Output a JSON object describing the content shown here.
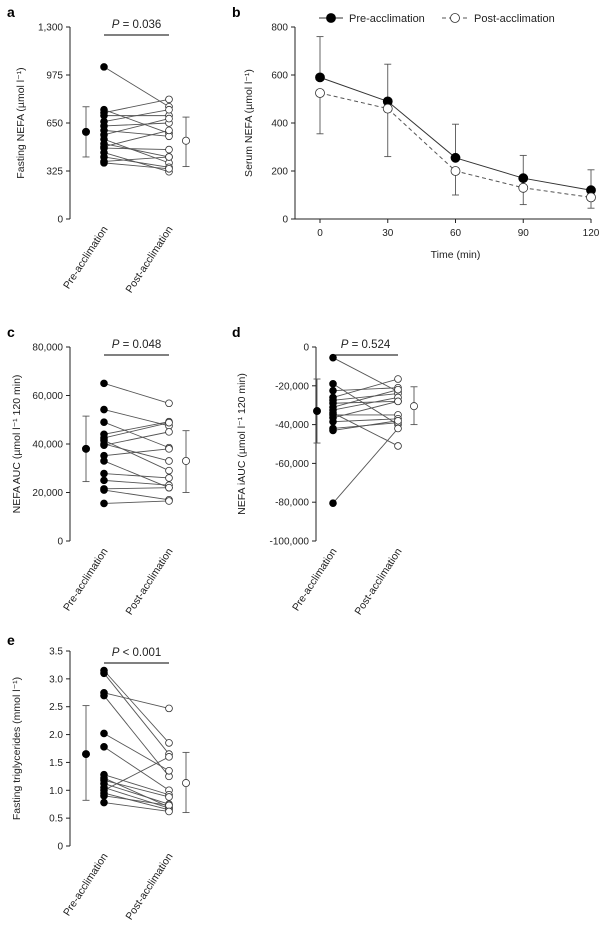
{
  "chart_data": [
    {
      "id": "a",
      "panel": "a",
      "type": "scatter",
      "subtype": "paired",
      "ylabel": "Fasting NEFA (µmol l⁻¹)",
      "ylim": [
        0,
        1300
      ],
      "yticks": [
        0,
        325,
        650,
        975,
        1300
      ],
      "ytick_labels": [
        "0",
        "325",
        "650",
        "975",
        "1,300"
      ],
      "categories": [
        "Pre-acclimation",
        "Post-acclimation"
      ],
      "annotation": {
        "prefix": "P",
        "text": " = 0.036"
      },
      "pairs": [
        [
          1030,
          760
        ],
        [
          740,
          580
        ],
        [
          720,
          810
        ],
        [
          700,
          700
        ],
        [
          660,
          740
        ],
        [
          630,
          650
        ],
        [
          600,
          560
        ],
        [
          570,
          680
        ],
        [
          540,
          380
        ],
        [
          510,
          420
        ],
        [
          490,
          600
        ],
        [
          480,
          470
        ],
        [
          450,
          320
        ],
        [
          420,
          350
        ],
        [
          390,
          420
        ],
        [
          380,
          340
        ]
      ],
      "summary": {
        "pre": {
          "mean": 590,
          "low": 420,
          "high": 760
        },
        "post": {
          "mean": 530,
          "low": 355,
          "high": 690
        }
      }
    },
    {
      "id": "b",
      "panel": "b",
      "type": "line",
      "xlabel": "Time (min)",
      "ylabel": "Serum NEFA (µmol l⁻¹)",
      "x": [
        0,
        30,
        60,
        90,
        120
      ],
      "xticks": [
        0,
        30,
        60,
        90,
        120
      ],
      "xlim": [
        0,
        120
      ],
      "ylim": [
        0,
        800
      ],
      "yticks": [
        0,
        200,
        400,
        600,
        800
      ],
      "ytick_labels": [
        "0",
        "200",
        "400",
        "600",
        "800"
      ],
      "legend": {
        "position": "top"
      },
      "series": [
        {
          "name": "Pre-acclimation",
          "style": "filled-solid",
          "values": [
            590,
            490,
            255,
            170,
            120
          ],
          "err_low": [
            355,
            260,
            100,
            70,
            35
          ],
          "err_high": [
            760,
            645,
            395,
            265,
            205
          ]
        },
        {
          "name": "Post-acclimation",
          "style": "open-dashed",
          "values": [
            525,
            460,
            200,
            130,
            90
          ],
          "err_low": [
            355,
            260,
            100,
            60,
            45
          ],
          "err_high": [
            760,
            645,
            395,
            265,
            205
          ]
        }
      ]
    },
    {
      "id": "c",
      "panel": "c",
      "type": "scatter",
      "subtype": "paired",
      "ylabel": "NEFA AUC (µmol l⁻¹ 120 min)",
      "ylim": [
        0,
        80000
      ],
      "yticks": [
        0,
        20000,
        40000,
        60000,
        80000
      ],
      "ytick_labels": [
        "0",
        "20,000",
        "40,000",
        "60,000",
        "80,000"
      ],
      "categories": [
        "Pre-acclimation",
        "Post-acclimation"
      ],
      "annotation": {
        "prefix": "P",
        "text": " = 0.048"
      },
      "pairs": [
        [
          65000,
          56800
        ],
        [
          54200,
          47500
        ],
        [
          49000,
          38500
        ],
        [
          44000,
          49200
        ],
        [
          42500,
          48800
        ],
        [
          41500,
          29000
        ],
        [
          40000,
          33000
        ],
        [
          39500,
          45000
        ],
        [
          35200,
          38000
        ],
        [
          33000,
          22000
        ],
        [
          27800,
          26000
        ],
        [
          25000,
          23000
        ],
        [
          21500,
          22000
        ],
        [
          21000,
          17000
        ],
        [
          15500,
          16500
        ]
      ],
      "summary": {
        "pre": {
          "mean": 38000,
          "low": 24500,
          "high": 51500
        },
        "post": {
          "mean": 33000,
          "low": 20000,
          "high": 45500
        }
      }
    },
    {
      "id": "d",
      "panel": "d",
      "type": "scatter",
      "subtype": "paired",
      "ylabel": "NEFA iAUC (µmol l⁻¹ 120 min)",
      "ylim": [
        -100000,
        0
      ],
      "yticks": [
        -100000,
        -80000,
        -60000,
        -40000,
        -20000,
        0
      ],
      "ytick_labels": [
        "-100,000",
        "-80,000",
        "-60,000",
        "-40,000",
        "-20,000",
        "0"
      ],
      "categories": [
        "Pre-acclimation",
        "Post-acclimation"
      ],
      "annotation": {
        "prefix": "P",
        "text": " = 0.524"
      },
      "pairs": [
        [
          -5500,
          -23000
        ],
        [
          -19000,
          -40000
        ],
        [
          -22500,
          -21000
        ],
        [
          -26000,
          -16500
        ],
        [
          -27500,
          -24000
        ],
        [
          -29000,
          -28000
        ],
        [
          -31000,
          -22000
        ],
        [
          -32500,
          -26000
        ],
        [
          -35000,
          -35000
        ],
        [
          -36500,
          -28000
        ],
        [
          -38500,
          -37000
        ],
        [
          -42000,
          -39000
        ],
        [
          -43000,
          -38000
        ],
        [
          -80500,
          -42000
        ],
        [
          -34000,
          -51000
        ]
      ],
      "summary": {
        "pre": {
          "mean": -33000,
          "low": -49500,
          "high": -16500
        },
        "post": {
          "mean": -30500,
          "low": -40000,
          "high": -20500
        }
      }
    },
    {
      "id": "e",
      "panel": "e",
      "type": "scatter",
      "subtype": "paired",
      "ylabel": "Fasting triglycerides (mmol l⁻¹)",
      "ylim": [
        0,
        3.5
      ],
      "yticks": [
        0,
        0.5,
        1.0,
        1.5,
        2.0,
        2.5,
        3.0,
        3.5
      ],
      "ytick_labels": [
        "0",
        "0.5",
        "1.0",
        "1.5",
        "2.0",
        "2.5",
        "3.0",
        "3.5"
      ],
      "categories": [
        "Pre-acclimation",
        "Post-acclimation"
      ],
      "annotation": {
        "prefix": "P",
        "text": " < 0.001"
      },
      "pairs": [
        [
          3.15,
          1.85
        ],
        [
          3.1,
          1.65
        ],
        [
          2.75,
          2.47
        ],
        [
          2.7,
          1.25
        ],
        [
          2.02,
          1.35
        ],
        [
          1.78,
          1.0
        ],
        [
          1.28,
          0.92
        ],
        [
          1.22,
          0.7
        ],
        [
          1.18,
          0.88
        ],
        [
          1.12,
          0.75
        ],
        [
          1.05,
          0.68
        ],
        [
          1.0,
          1.6
        ],
        [
          0.95,
          0.65
        ],
        [
          0.9,
          0.73
        ],
        [
          0.78,
          0.62
        ]
      ],
      "summary": {
        "pre": {
          "mean": 1.65,
          "low": 0.82,
          "high": 2.52
        },
        "post": {
          "mean": 1.13,
          "low": 0.6,
          "high": 1.68
        }
      }
    }
  ]
}
